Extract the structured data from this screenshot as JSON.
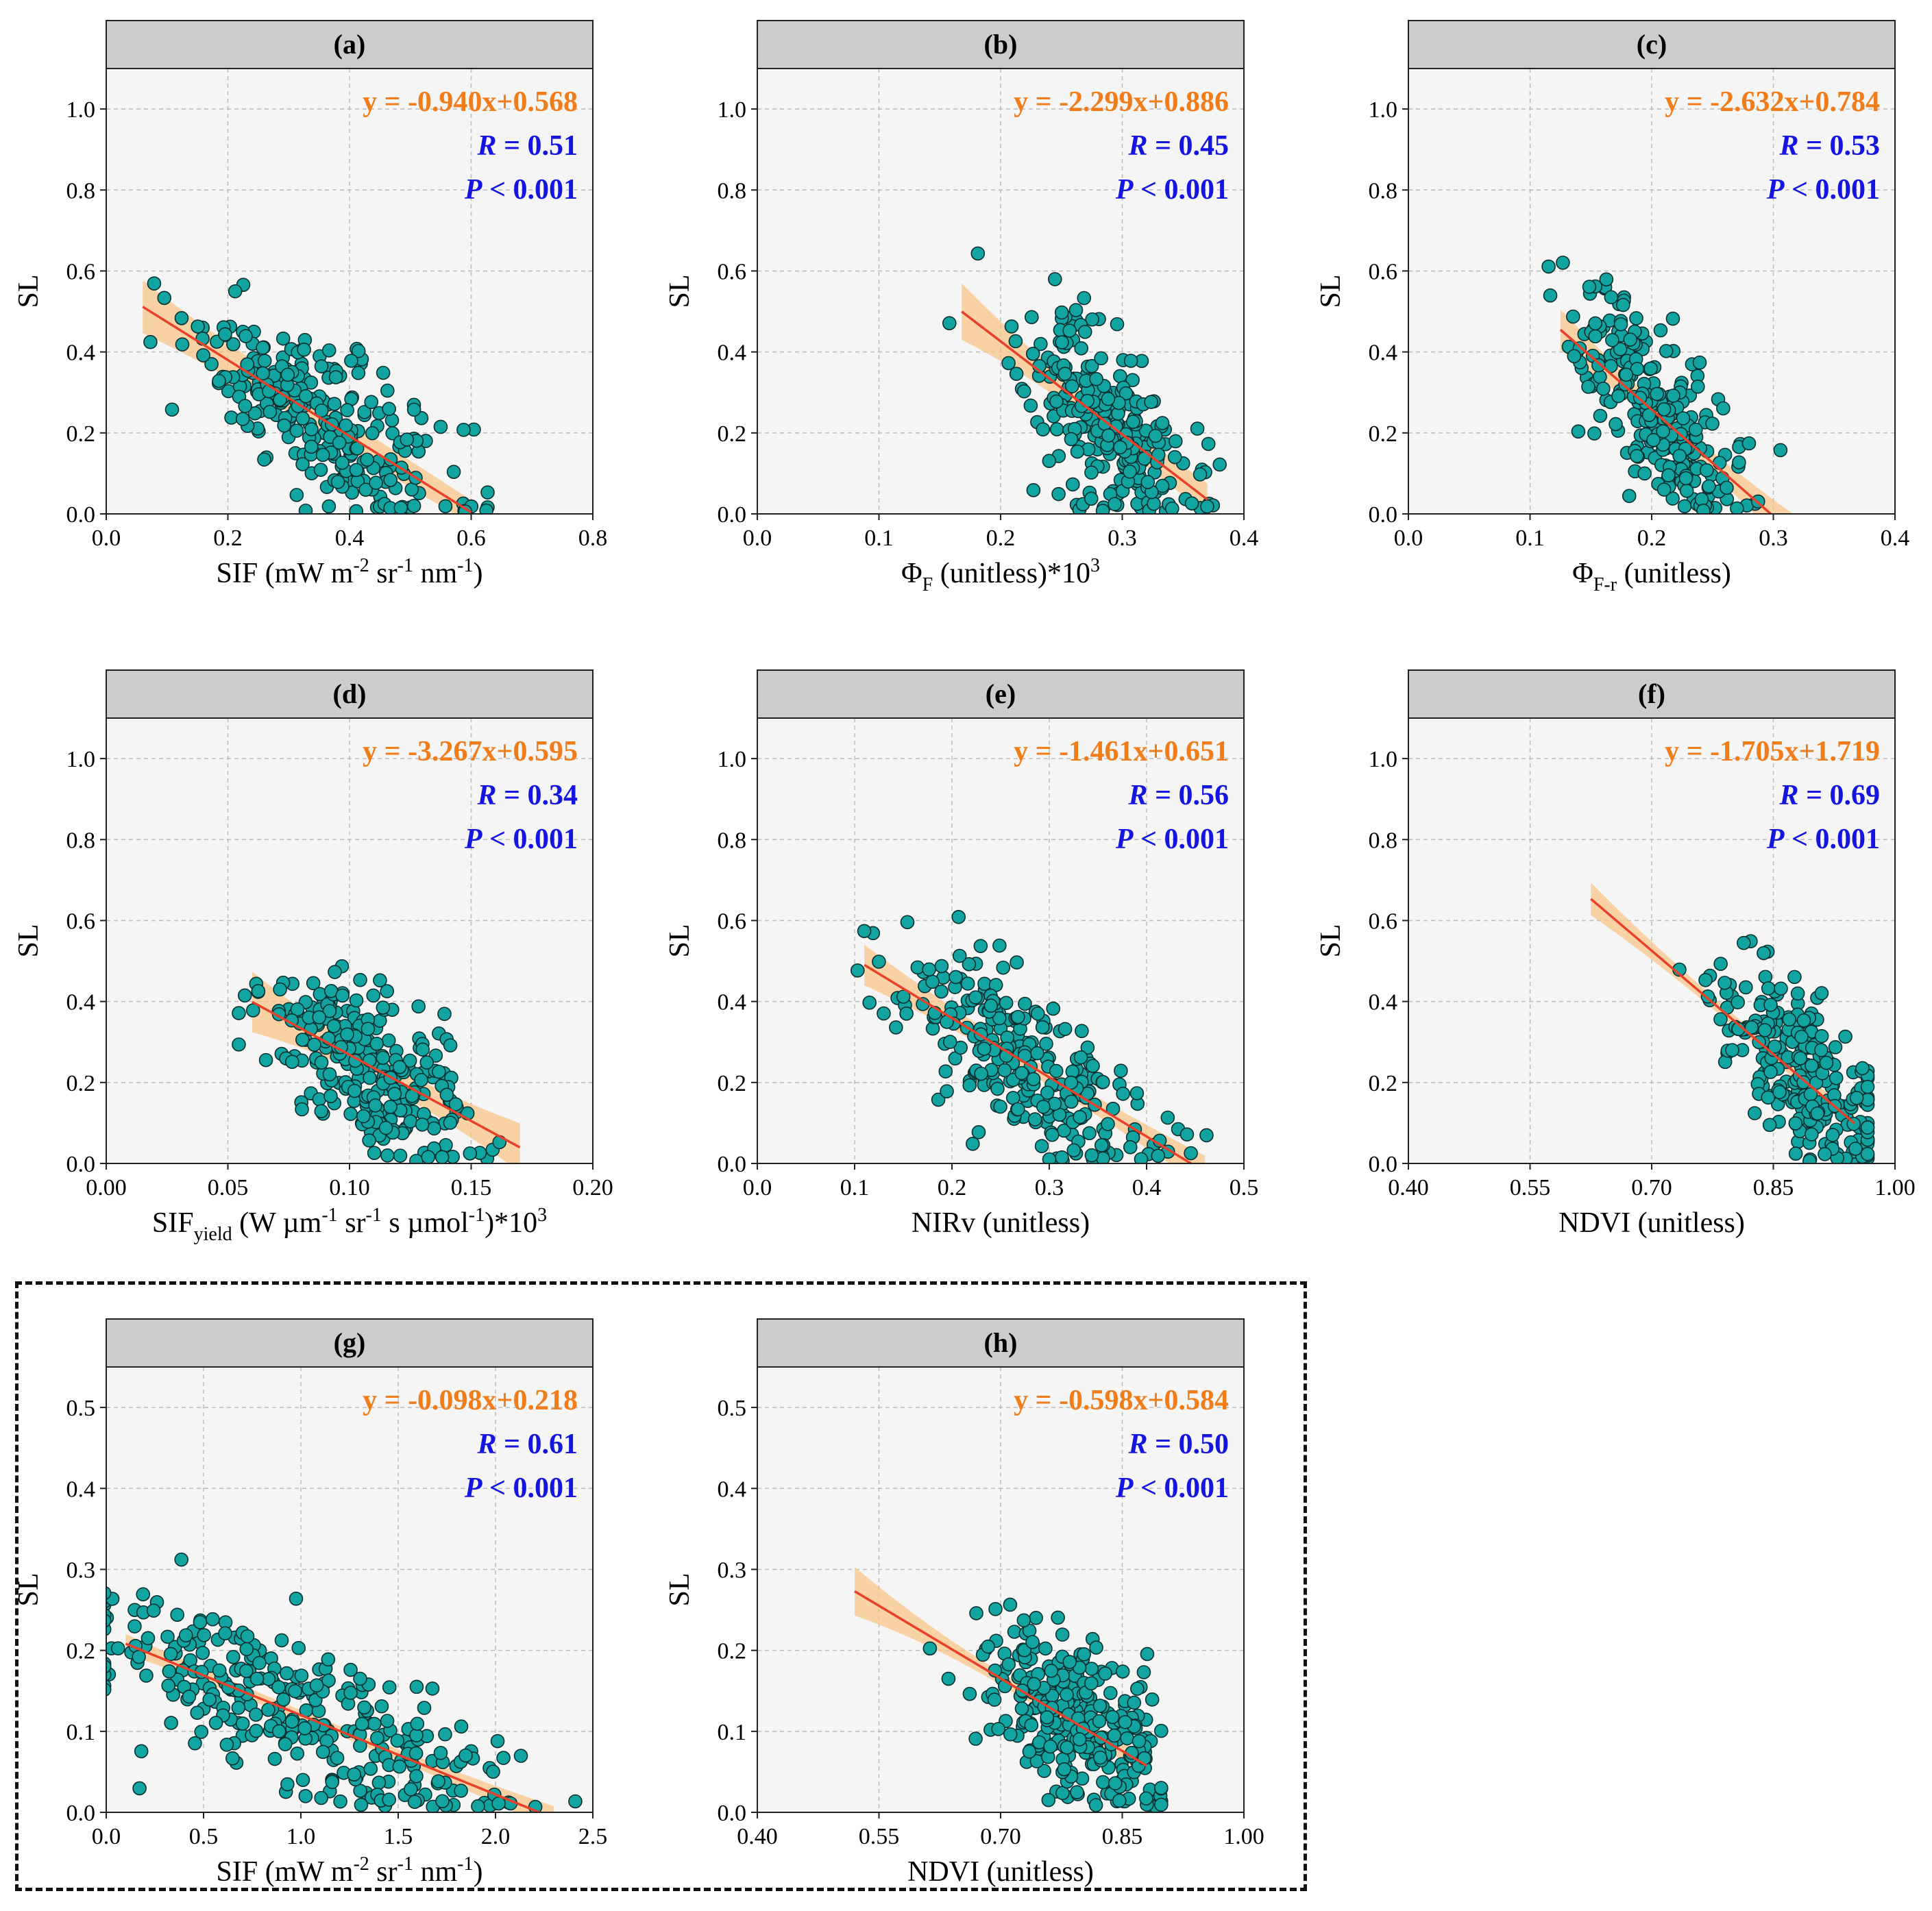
{
  "figure": {
    "y_axis_label": "SL",
    "colors": {
      "point_fill": "#12a4a0",
      "point_edge": "#0b2e2e",
      "fit_line": "#e8402a",
      "ci_band": "#f8c48a",
      "panel_bg": "#f5f5f5",
      "strip_bg": "#cccccc",
      "eq_color": "#f07d1a",
      "stat_color": "#1515e0"
    }
  },
  "chart_data": [
    {
      "id": "a",
      "type": "scatter",
      "title": "(a)",
      "xlabel_main": "SIF (mW m",
      "xlabel_parts": [
        [
          "SIF (mW m",
          ""
        ],
        [
          "-2",
          "sup"
        ],
        [
          " sr",
          ""
        ],
        [
          "-1",
          "sup"
        ],
        [
          " nm",
          ""
        ],
        [
          "-1",
          "sup"
        ],
        [
          ")",
          ""
        ]
      ],
      "ylabel": "SL",
      "xlim": [
        0.0,
        0.8
      ],
      "ylim": [
        0.0,
        1.1
      ],
      "xticks": [
        0.0,
        0.2,
        0.4,
        0.6,
        0.8
      ],
      "xtick_labels": [
        "0.0",
        "0.2",
        "0.4",
        "0.6",
        "0.8"
      ],
      "yticks": [
        0.0,
        0.2,
        0.4,
        0.6,
        0.8,
        1.0
      ],
      "ytick_labels": [
        "0.0",
        "0.2",
        "0.4",
        "0.6",
        "0.8",
        "1.0"
      ],
      "equation": "y = -0.940x+0.568",
      "r_label": "R",
      "r_value": " = 0.51",
      "p_label": "P",
      "p_value": " < 0.001",
      "slope": -0.94,
      "intercept": 0.568,
      "fit_x": [
        0.06,
        0.6
      ],
      "ci_halfwidth": [
        0.065,
        0.035,
        0.03
      ],
      "scatter_center": [
        0.35,
        0.22
      ],
      "scatter_spread": [
        0.11,
        0.15
      ],
      "n_points": 260,
      "seed": 11
    },
    {
      "id": "b",
      "type": "scatter",
      "title": "(b)",
      "xlabel_parts": [
        [
          "Φ",
          ""
        ],
        [
          "F",
          "sub"
        ],
        [
          " (unitless)*10",
          ""
        ],
        [
          "3",
          "sup"
        ]
      ],
      "ylabel": "SL",
      "xlim": [
        0.0,
        0.4
      ],
      "ylim": [
        0.0,
        1.1
      ],
      "xticks": [
        0.0,
        0.1,
        0.2,
        0.3,
        0.4
      ],
      "xtick_labels": [
        "0.0",
        "0.1",
        "0.2",
        "0.3",
        "0.4"
      ],
      "yticks": [
        0.0,
        0.2,
        0.4,
        0.6,
        0.8,
        1.0
      ],
      "ytick_labels": [
        "0.0",
        "0.2",
        "0.4",
        "0.6",
        "0.8",
        "1.0"
      ],
      "equation": "y = -2.299x+0.886",
      "r_label": "R",
      "r_value": " = 0.45",
      "p_label": "P",
      "p_value": " < 0.001",
      "slope": -2.299,
      "intercept": 0.886,
      "fit_x": [
        0.168,
        0.37
      ],
      "ci_halfwidth": [
        0.07,
        0.03,
        0.04
      ],
      "scatter_center": [
        0.285,
        0.24
      ],
      "scatter_spread": [
        0.035,
        0.15
      ],
      "n_points": 260,
      "seed": 23
    },
    {
      "id": "c",
      "type": "scatter",
      "title": "(c)",
      "xlabel_parts": [
        [
          "Φ",
          ""
        ],
        [
          "F-r",
          "sub"
        ],
        [
          " (unitless)",
          ""
        ]
      ],
      "ylabel": "SL",
      "xlim": [
        0.0,
        0.4
      ],
      "ylim": [
        0.0,
        1.1
      ],
      "xticks": [
        0.0,
        0.1,
        0.2,
        0.3,
        0.4
      ],
      "xtick_labels": [
        "0.0",
        "0.1",
        "0.2",
        "0.3",
        "0.4"
      ],
      "yticks": [
        0.0,
        0.2,
        0.4,
        0.6,
        0.8,
        1.0
      ],
      "ytick_labels": [
        "0.0",
        "0.2",
        "0.4",
        "0.6",
        "0.8",
        "1.0"
      ],
      "equation": "y = -2.632x+0.784",
      "r_label": "R",
      "r_value": " = 0.53",
      "p_label": "P",
      "p_value": " < 0.001",
      "slope": -2.632,
      "intercept": 0.784,
      "fit_x": [
        0.125,
        0.32
      ],
      "ci_halfwidth": [
        0.05,
        0.025,
        0.05
      ],
      "scatter_center": [
        0.2,
        0.22
      ],
      "scatter_spread": [
        0.035,
        0.15
      ],
      "n_points": 260,
      "seed": 37
    },
    {
      "id": "d",
      "type": "scatter",
      "title": "(d)",
      "xlabel_parts": [
        [
          "SIF",
          ""
        ],
        [
          "yield",
          "sub"
        ],
        [
          " (W µm",
          ""
        ],
        [
          "-1",
          "sup"
        ],
        [
          " sr",
          ""
        ],
        [
          "-1",
          "sup"
        ],
        [
          " s µmol",
          ""
        ],
        [
          "-1",
          "sup"
        ],
        [
          ")*10",
          ""
        ],
        [
          "3",
          "sup"
        ]
      ],
      "ylabel": "SL",
      "xlim": [
        0.0,
        0.2
      ],
      "ylim": [
        0.0,
        1.1
      ],
      "xticks": [
        0.0,
        0.05,
        0.1,
        0.15,
        0.2
      ],
      "xtick_labels": [
        "0.00",
        "0.05",
        "0.10",
        "0.15",
        "0.20"
      ],
      "yticks": [
        0.0,
        0.2,
        0.4,
        0.6,
        0.8,
        1.0
      ],
      "ytick_labels": [
        "0.0",
        "0.2",
        "0.4",
        "0.6",
        "0.8",
        "1.0"
      ],
      "equation": "y = -3.267x+0.595",
      "r_label": "R",
      "r_value": " = 0.34",
      "p_label": "P",
      "p_value": " < 0.001",
      "slope": -3.267,
      "intercept": 0.595,
      "fit_x": [
        0.06,
        0.17
      ],
      "ci_halfwidth": [
        0.075,
        0.03,
        0.06
      ],
      "scatter_center": [
        0.108,
        0.24
      ],
      "scatter_spread": [
        0.02,
        0.15
      ],
      "n_points": 260,
      "seed": 41
    },
    {
      "id": "e",
      "type": "scatter",
      "title": "(e)",
      "xlabel_parts": [
        [
          "NIRv (unitless)",
          ""
        ]
      ],
      "ylabel": "SL",
      "xlim": [
        0.0,
        0.5
      ],
      "ylim": [
        0.0,
        1.1
      ],
      "xticks": [
        0.0,
        0.1,
        0.2,
        0.3,
        0.4,
        0.5
      ],
      "xtick_labels": [
        "0.0",
        "0.1",
        "0.2",
        "0.3",
        "0.4",
        "0.5"
      ],
      "yticks": [
        0.0,
        0.2,
        0.4,
        0.6,
        0.8,
        1.0
      ],
      "ytick_labels": [
        "0.0",
        "0.2",
        "0.4",
        "0.6",
        "0.8",
        "1.0"
      ],
      "equation": "y = -1.461x+0.651",
      "r_label": "R",
      "r_value": " = 0.56",
      "p_label": "P",
      "p_value": " < 0.001",
      "slope": -1.461,
      "intercept": 0.651,
      "fit_x": [
        0.11,
        0.46
      ],
      "ci_halfwidth": [
        0.05,
        0.02,
        0.04
      ],
      "scatter_center": [
        0.27,
        0.23
      ],
      "scatter_spread": [
        0.07,
        0.15
      ],
      "n_points": 260,
      "seed": 53
    },
    {
      "id": "f",
      "type": "scatter",
      "title": "(f)",
      "xlabel_parts": [
        [
          "NDVI (unitless)",
          ""
        ]
      ],
      "ylabel": "SL",
      "xlim": [
        0.4,
        1.0
      ],
      "ylim": [
        0.0,
        1.1
      ],
      "xticks": [
        0.4,
        0.55,
        0.7,
        0.85,
        1.0
      ],
      "xtick_labels": [
        "0.40",
        "0.55",
        "0.70",
        "0.85",
        "1.00"
      ],
      "yticks": [
        0.0,
        0.2,
        0.4,
        0.6,
        0.8,
        1.0
      ],
      "ytick_labels": [
        "0.0",
        "0.2",
        "0.4",
        "0.6",
        "0.8",
        "1.0"
      ],
      "equation": "y = -1.705x+1.719",
      "r_label": "R",
      "r_value": " = 0.69",
      "p_label": "P",
      "p_value": " < 0.001",
      "slope": -1.705,
      "intercept": 1.719,
      "fit_x": [
        0.625,
        0.95
      ],
      "ci_halfwidth": [
        0.04,
        0.015,
        0.02
      ],
      "scatter_center": [
        0.88,
        0.2
      ],
      "scatter_spread": [
        0.05,
        0.13
      ],
      "n_points": 260,
      "seed": 67
    },
    {
      "id": "g",
      "type": "scatter",
      "title": "(g)",
      "xlabel_parts": [
        [
          "SIF (mW m",
          ""
        ],
        [
          "-2",
          "sup"
        ],
        [
          " sr",
          ""
        ],
        [
          "-1",
          "sup"
        ],
        [
          " nm",
          ""
        ],
        [
          "-1",
          "sup"
        ],
        [
          ")",
          ""
        ]
      ],
      "ylabel": "SL",
      "xlim": [
        0.0,
        2.5
      ],
      "ylim": [
        0.0,
        0.55
      ],
      "xticks": [
        0.0,
        0.5,
        1.0,
        1.5,
        2.0,
        2.5
      ],
      "xtick_labels": [
        "0.0",
        "0.5",
        "1.0",
        "1.5",
        "2.0",
        "2.5"
      ],
      "yticks": [
        0.0,
        0.1,
        0.2,
        0.3,
        0.4,
        0.5
      ],
      "ytick_labels": [
        "0.0",
        "0.1",
        "0.2",
        "0.3",
        "0.4",
        "0.5"
      ],
      "equation": "y = -0.098x+0.218",
      "r_label": "R",
      "r_value": " = 0.61",
      "p_label": "P",
      "p_value": " < 0.001",
      "slope": -0.098,
      "intercept": 0.218,
      "fit_x": [
        0.1,
        2.3
      ],
      "ci_halfwidth": [
        0.012,
        0.006,
        0.015
      ],
      "scatter_center": [
        1.0,
        0.11
      ],
      "scatter_spread": [
        0.55,
        0.07
      ],
      "n_points": 300,
      "seed": 79
    },
    {
      "id": "h",
      "type": "scatter",
      "title": "(h)",
      "xlabel_parts": [
        [
          "NDVI (unitless)",
          ""
        ]
      ],
      "ylabel": "SL",
      "xlim": [
        0.4,
        1.0
      ],
      "ylim": [
        0.0,
        0.55
      ],
      "xticks": [
        0.4,
        0.55,
        0.7,
        0.85,
        1.0
      ],
      "xtick_labels": [
        "0.40",
        "0.55",
        "0.70",
        "0.85",
        "1.00"
      ],
      "yticks": [
        0.0,
        0.1,
        0.2,
        0.3,
        0.4,
        0.5
      ],
      "ytick_labels": [
        "0.0",
        "0.1",
        "0.2",
        "0.3",
        "0.4",
        "0.5"
      ],
      "equation": "y = -0.598x+0.584",
      "r_label": "R",
      "r_value": " = 0.50",
      "p_label": "P",
      "p_value": " < 0.001",
      "slope": -0.598,
      "intercept": 0.584,
      "fit_x": [
        0.52,
        0.88
      ],
      "ci_halfwidth": [
        0.03,
        0.008,
        0.012
      ],
      "scatter_center": [
        0.79,
        0.1
      ],
      "scatter_spread": [
        0.06,
        0.07
      ],
      "n_points": 280,
      "seed": 97
    }
  ]
}
